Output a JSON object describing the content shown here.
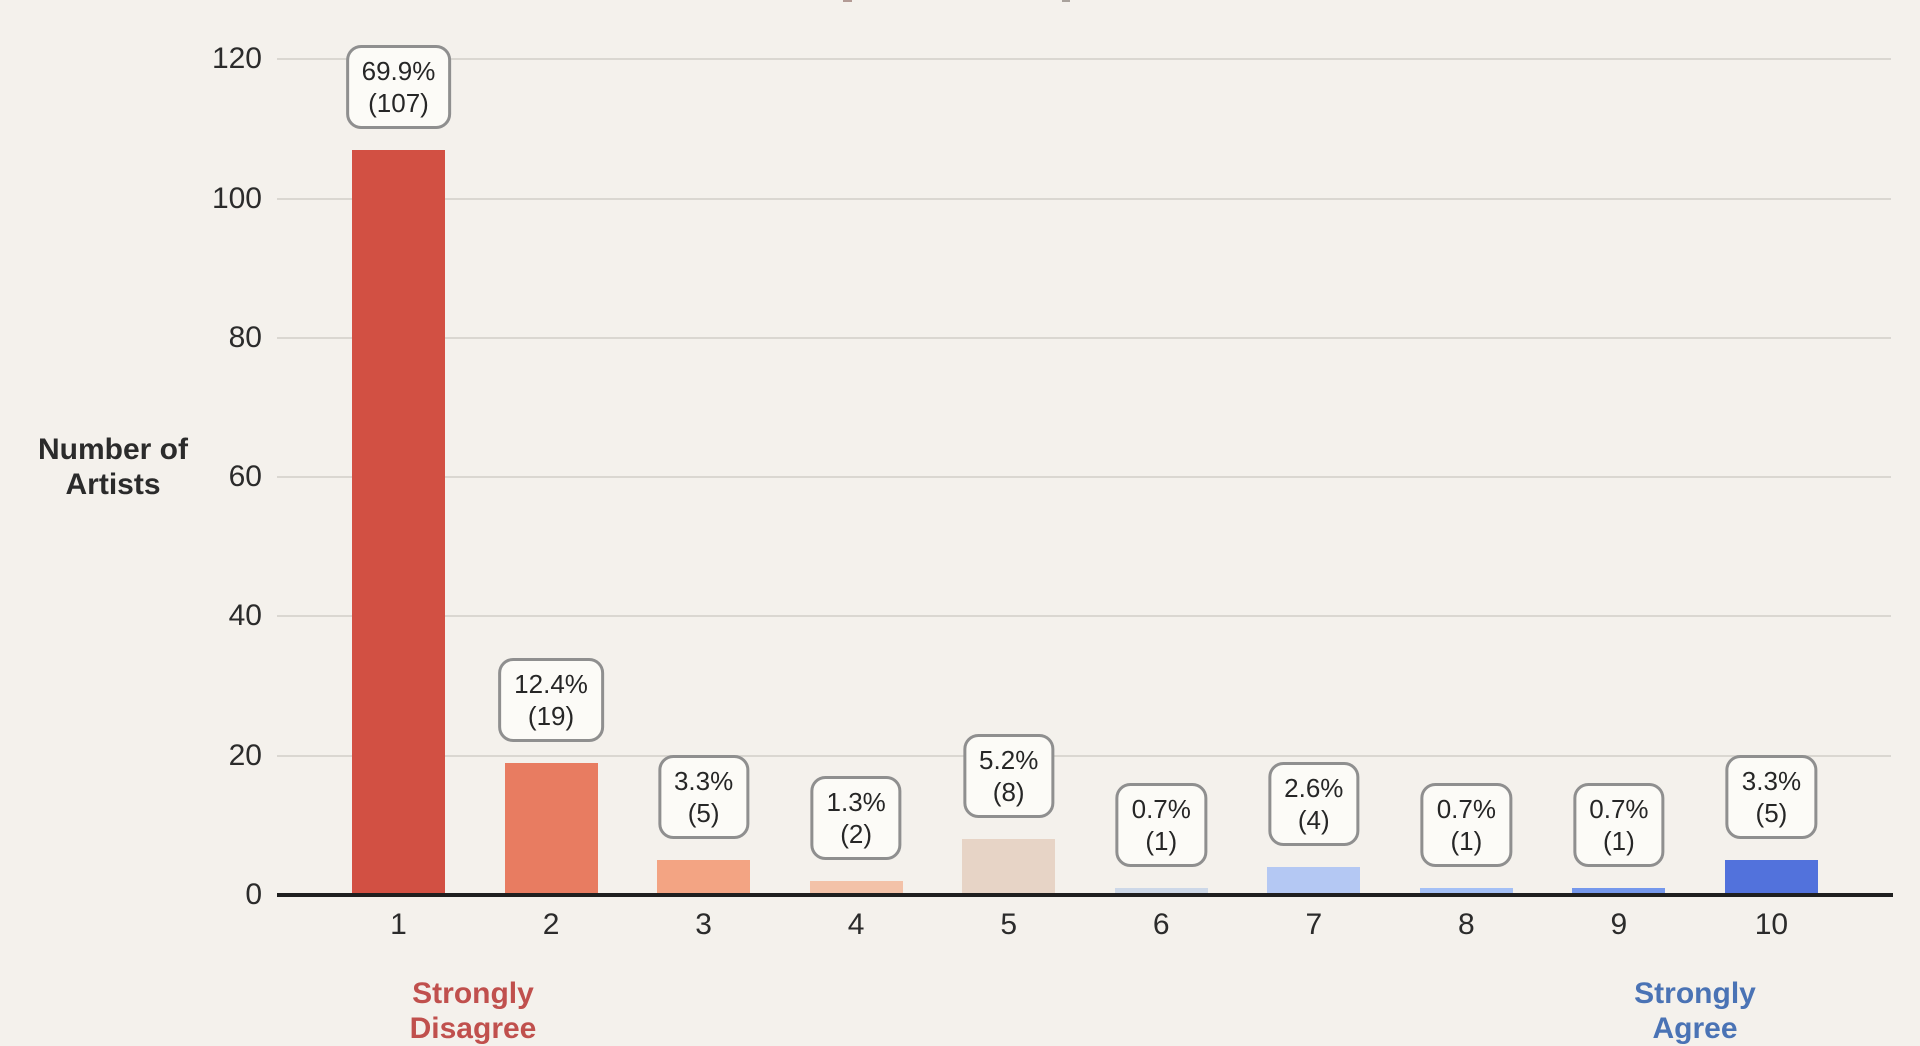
{
  "colors": {
    "background": "#f4f1ec",
    "grid": "#dad7d1",
    "axis": "#1f1f1f",
    "tick_text": "#2b2b2b",
    "annotation_bg": "#fcfbf7",
    "annotation_border": "#8f8f8f",
    "annotation_text": "#262626",
    "left_anchor": "#c0504d",
    "right_anchor": "#4a73b5"
  },
  "y_axis": {
    "title_lines": [
      "Number of",
      "Artists"
    ],
    "ticks": [
      "0",
      "20",
      "40",
      "60",
      "80",
      "100",
      "120"
    ]
  },
  "x_axis": {
    "ticks": [
      "1",
      "2",
      "3",
      "4",
      "5",
      "6",
      "7",
      "8",
      "9",
      "10"
    ],
    "left_anchor": {
      "line1": "Strongly",
      "line2": "Disagree"
    },
    "right_anchor": {
      "line1": "Strongly",
      "line2": "Agree"
    }
  },
  "chart_data": {
    "type": "bar",
    "title": "",
    "xlabel": "",
    "ylabel": "Number of Artists",
    "categories": [
      "1",
      "2",
      "3",
      "4",
      "5",
      "6",
      "7",
      "8",
      "9",
      "10"
    ],
    "values": [
      107,
      19,
      5,
      2,
      8,
      1,
      4,
      1,
      1,
      5
    ],
    "percent_labels": [
      "69.9%",
      "12.4%",
      "3.3%",
      "1.3%",
      "5.2%",
      "0.7%",
      "2.6%",
      "0.7%",
      "0.7%",
      "3.3%"
    ],
    "count_labels": [
      "(107)",
      "(19)",
      "(5)",
      "(2)",
      "(8)",
      "(1)",
      "(4)",
      "(1)",
      "(1)",
      "(5)"
    ],
    "bar_colors": [
      "#d25043",
      "#e87c61",
      "#f3a483",
      "#f3c2a8",
      "#e7d4c6",
      "#cdd8e8",
      "#b4c8f3",
      "#a4c0f6",
      "#7598ec",
      "#5272dc"
    ],
    "ylim": [
      0,
      120
    ],
    "yticks": [
      0,
      20,
      40,
      60,
      80,
      100,
      120
    ],
    "grid": true,
    "legend": false,
    "annotation_style": "rounded-box",
    "x_anchor_left": "Strongly Disagree",
    "x_anchor_right": "Strongly Agree"
  }
}
